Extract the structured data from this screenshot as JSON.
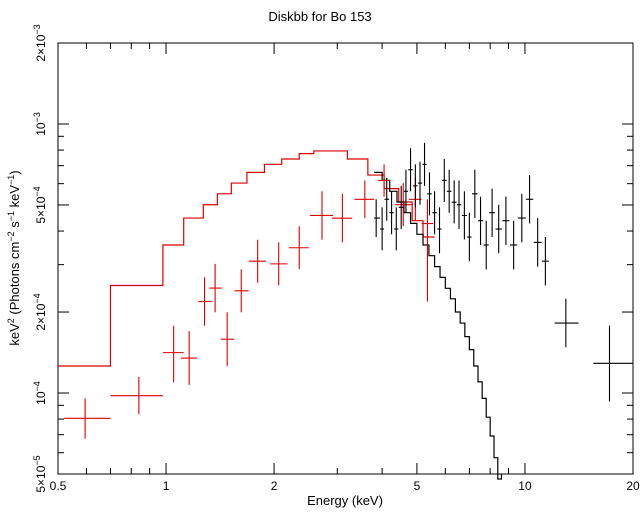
{
  "chart_data": {
    "type": "scatter",
    "title": "Diskbb for Bo 153",
    "xlabel": "Energy (keV)",
    "ylabel_parts": {
      "base": "keV",
      "sup1": "2",
      "mid1": " (Photons cm",
      "sup2": "−2",
      "mid2": " s",
      "sup3": "−1",
      "mid3": " keV",
      "sup4": "−1",
      "end": ")"
    },
    "xscale": "log",
    "yscale": "log",
    "xlim": [
      0.5,
      20
    ],
    "ylim": [
      5e-05,
      0.002
    ],
    "grid": false,
    "x_ticks": [
      {
        "value": 0.5,
        "label": "0.5"
      },
      {
        "value": 1,
        "label": "1"
      },
      {
        "value": 2,
        "label": "2"
      },
      {
        "value": 5,
        "label": "5"
      },
      {
        "value": 10,
        "label": "10"
      },
      {
        "value": 20,
        "label": "20"
      }
    ],
    "x_minor_ticks": [
      0.6,
      0.7,
      0.8,
      0.9,
      3,
      4,
      6,
      7,
      8,
      9
    ],
    "y_ticks": [
      {
        "value": 5e-05,
        "mantissa": "5",
        "times": "×",
        "base": "10",
        "exp": "−5"
      },
      {
        "value": 0.0001,
        "mantissa": "",
        "times": "",
        "base": "10",
        "exp": "−4"
      },
      {
        "value": 0.0002,
        "mantissa": "2",
        "times": "×",
        "base": "10",
        "exp": "−4"
      },
      {
        "value": 0.0005,
        "mantissa": "5",
        "times": "×",
        "base": "10",
        "exp": "−4"
      },
      {
        "value": 0.001,
        "mantissa": "",
        "times": "",
        "base": "10",
        "exp": "−3"
      },
      {
        "value": 0.002,
        "mantissa": "2",
        "times": "×",
        "base": "10",
        "exp": "−3"
      }
    ],
    "y_minor_ticks": [
      6e-05,
      7e-05,
      8e-05,
      9e-05,
      0.0003,
      0.0004,
      0.0006,
      0.0007,
      0.0008,
      0.0009
    ],
    "series": [
      {
        "color": "#dd0000",
        "points": [
          {
            "x": 0.595,
            "xlo": 0.52,
            "xhi": 0.7,
            "y": 8.05e-05,
            "ylo": 6.76e-05,
            "yhi": 9.55e-05
          },
          {
            "x": 0.84,
            "xlo": 0.7,
            "xhi": 0.98,
            "y": 9.77e-05,
            "ylo": 8.33e-05,
            "yhi": 0.0001148
          },
          {
            "x": 1.05,
            "xlo": 0.98,
            "xhi": 1.12,
            "y": 0.0001413,
            "ylo": 0.0001096,
            "yhi": 0.0001778
          },
          {
            "x": 1.16,
            "xlo": 1.1,
            "xhi": 1.22,
            "y": 0.0001349,
            "ylo": 0.0001072,
            "yhi": 0.0001698
          },
          {
            "x": 1.28,
            "xlo": 1.23,
            "xhi": 1.34,
            "y": 0.0002188,
            "ylo": 0.0001778,
            "yhi": 0.0002692
          },
          {
            "x": 1.37,
            "xlo": 1.32,
            "xhi": 1.43,
            "y": 0.0002455,
            "ylo": 0.0001995,
            "yhi": 0.000302
          },
          {
            "x": 1.48,
            "xlo": 1.42,
            "xhi": 1.55,
            "y": 0.0001585,
            "ylo": 0.0001259,
            "yhi": 0.0001995
          },
          {
            "x": 1.62,
            "xlo": 1.55,
            "xhi": 1.7,
            "y": 0.0002399,
            "ylo": 0.0001995,
            "yhi": 0.0002884
          },
          {
            "x": 1.8,
            "xlo": 1.7,
            "xhi": 1.9,
            "y": 0.000309,
            "ylo": 0.000257,
            "yhi": 0.0003715
          },
          {
            "x": 2.06,
            "xlo": 1.95,
            "xhi": 2.18,
            "y": 0.000302,
            "ylo": 0.0002512,
            "yhi": 0.0003631
          },
          {
            "x": 2.35,
            "xlo": 2.2,
            "xhi": 2.5,
            "y": 0.0003467,
            "ylo": 0.0002884,
            "yhi": 0.0004169
          },
          {
            "x": 2.72,
            "xlo": 2.52,
            "xhi": 2.92,
            "y": 0.0004571,
            "ylo": 0.0003715,
            "yhi": 0.0005623
          },
          {
            "x": 3.1,
            "xlo": 2.9,
            "xhi": 3.3,
            "y": 0.0004467,
            "ylo": 0.0003631,
            "yhi": 0.0005495
          },
          {
            "x": 3.58,
            "xlo": 3.35,
            "xhi": 3.8,
            "y": 0.0005248,
            "ylo": 0.0004467,
            "yhi": 0.0006166
          },
          {
            "x": 4.05,
            "xlo": 3.9,
            "xhi": 4.2,
            "y": 0.0006166,
            "ylo": 0.000537,
            "yhi": 0.0007079
          },
          {
            "x": 4.58,
            "xlo": 4.35,
            "xhi": 4.85,
            "y": 0.0005012,
            "ylo": 0.0004169,
            "yhi": 0.0006026
          },
          {
            "x": 4.95,
            "xlo": 4.75,
            "xhi": 5.15,
            "y": 0.0005248,
            "ylo": 0.0004365,
            "yhi": 0.000631
          },
          {
            "x": 5.35,
            "xlo": 5.15,
            "xhi": 5.55,
            "y": 0.0004266,
            "ylo": 0.0002188,
            "yhi": 0.0005248
          }
        ],
        "model_steps": [
          {
            "x0": 0.5,
            "x1": 0.7,
            "y": 0.000126
          },
          {
            "x0": 0.7,
            "x1": 0.98,
            "y": 0.000251
          },
          {
            "x0": 0.98,
            "x1": 1.12,
            "y": 0.000355
          },
          {
            "x0": 1.12,
            "x1": 1.27,
            "y": 0.000447
          },
          {
            "x0": 1.27,
            "x1": 1.39,
            "y": 0.000501
          },
          {
            "x0": 1.39,
            "x1": 1.52,
            "y": 0.00055
          },
          {
            "x0": 1.52,
            "x1": 1.68,
            "y": 0.000603
          },
          {
            "x0": 1.68,
            "x1": 1.88,
            "y": 0.000661
          },
          {
            "x0": 1.88,
            "x1": 2.1,
            "y": 0.000708
          },
          {
            "x0": 2.1,
            "x1": 2.35,
            "y": 0.000741
          },
          {
            "x0": 2.35,
            "x1": 2.58,
            "y": 0.000776
          },
          {
            "x0": 2.58,
            "x1": 3.2,
            "y": 0.000794
          },
          {
            "x0": 3.2,
            "x1": 3.65,
            "y": 0.000741
          },
          {
            "x0": 3.65,
            "x1": 4.05,
            "y": 0.000646
          },
          {
            "x0": 4.05,
            "x1": 4.45,
            "y": 0.000575
          },
          {
            "x0": 4.45,
            "x1": 4.85,
            "y": 0.000513
          },
          {
            "x0": 4.85,
            "x1": 5.2,
            "y": 0.000437
          },
          {
            "x0": 5.2,
            "x1": 5.6,
            "y": 0.00038
          }
        ]
      },
      {
        "color": "#000000",
        "points": [
          {
            "x": 3.85,
            "xlo": 3.8,
            "xhi": 3.95,
            "y": 0.000447,
            "ylo": 0.00038,
            "yhi": 0.000525
          },
          {
            "x": 4.0,
            "xlo": 3.95,
            "xhi": 4.05,
            "y": 0.000407,
            "ylo": 0.000339,
            "yhi": 0.00049
          },
          {
            "x": 4.12,
            "xlo": 4.06,
            "xhi": 4.18,
            "y": 0.000525,
            "ylo": 0.000437,
            "yhi": 0.000631
          },
          {
            "x": 4.25,
            "xlo": 4.19,
            "xhi": 4.31,
            "y": 0.000468,
            "ylo": 0.000389,
            "yhi": 0.000562
          },
          {
            "x": 4.38,
            "xlo": 4.32,
            "xhi": 4.44,
            "y": 0.000407,
            "ylo": 0.000339,
            "yhi": 0.00049
          },
          {
            "x": 4.52,
            "xlo": 4.45,
            "xhi": 4.59,
            "y": 0.00049,
            "ylo": 0.000407,
            "yhi": 0.000589
          },
          {
            "x": 4.66,
            "xlo": 4.6,
            "xhi": 4.72,
            "y": 0.000562,
            "ylo": 0.000468,
            "yhi": 0.000676
          },
          {
            "x": 4.8,
            "xlo": 4.73,
            "xhi": 4.87,
            "y": 0.000676,
            "ylo": 0.000562,
            "yhi": 0.000813
          },
          {
            "x": 4.95,
            "xlo": 4.88,
            "xhi": 5.02,
            "y": 0.000589,
            "ylo": 0.00049,
            "yhi": 0.000708
          },
          {
            "x": 5.1,
            "xlo": 5.03,
            "xhi": 5.17,
            "y": 0.000603,
            "ylo": 0.000501,
            "yhi": 0.000724
          },
          {
            "x": 5.25,
            "xlo": 5.18,
            "xhi": 5.32,
            "y": 0.000708,
            "ylo": 0.000589,
            "yhi": 0.000851
          },
          {
            "x": 5.42,
            "xlo": 5.34,
            "xhi": 5.5,
            "y": 0.00055,
            "ylo": 0.000457,
            "yhi": 0.000661
          },
          {
            "x": 5.6,
            "xlo": 5.52,
            "xhi": 5.68,
            "y": 0.000468,
            "ylo": 0.000389,
            "yhi": 0.000562
          },
          {
            "x": 5.78,
            "xlo": 5.7,
            "xhi": 5.86,
            "y": 0.000407,
            "ylo": 0.000331,
            "yhi": 0.00049
          },
          {
            "x": 5.96,
            "xlo": 5.88,
            "xhi": 6.05,
            "y": 0.000617,
            "ylo": 0.000513,
            "yhi": 0.000741
          },
          {
            "x": 6.15,
            "xlo": 6.06,
            "xhi": 6.24,
            "y": 0.000562,
            "ylo": 0.000468,
            "yhi": 0.000676
          },
          {
            "x": 6.35,
            "xlo": 6.25,
            "xhi": 6.45,
            "y": 0.000512,
            "ylo": 0.000427,
            "yhi": 0.000617
          },
          {
            "x": 6.55,
            "xlo": 6.46,
            "xhi": 6.65,
            "y": 0.000501,
            "ylo": 0.000407,
            "yhi": 0.000617
          },
          {
            "x": 6.78,
            "xlo": 6.67,
            "xhi": 6.89,
            "y": 0.000457,
            "ylo": 0.000372,
            "yhi": 0.000562
          },
          {
            "x": 7.0,
            "xlo": 6.9,
            "xhi": 7.1,
            "y": 0.00038,
            "ylo": 0.000309,
            "yhi": 0.000468
          },
          {
            "x": 7.25,
            "xlo": 7.12,
            "xhi": 7.38,
            "y": 0.00055,
            "ylo": 0.000447,
            "yhi": 0.000676
          },
          {
            "x": 7.52,
            "xlo": 7.4,
            "xhi": 7.65,
            "y": 0.000437,
            "ylo": 0.000355,
            "yhi": 0.000537
          },
          {
            "x": 7.8,
            "xlo": 7.67,
            "xhi": 7.93,
            "y": 0.000355,
            "ylo": 0.000288,
            "yhi": 0.000437
          },
          {
            "x": 8.1,
            "xlo": 7.95,
            "xhi": 8.25,
            "y": 0.000468,
            "ylo": 0.00038,
            "yhi": 0.000575
          },
          {
            "x": 8.45,
            "xlo": 8.28,
            "xhi": 8.62,
            "y": 0.000407,
            "ylo": 0.000331,
            "yhi": 0.000501
          },
          {
            "x": 8.85,
            "xlo": 8.65,
            "xhi": 9.05,
            "y": 0.000437,
            "ylo": 0.000355,
            "yhi": 0.000537
          },
          {
            "x": 9.3,
            "xlo": 9.08,
            "xhi": 9.52,
            "y": 0.000355,
            "ylo": 0.000288,
            "yhi": 0.000437
          },
          {
            "x": 9.8,
            "xlo": 9.55,
            "xhi": 10.05,
            "y": 0.000447,
            "ylo": 0.000363,
            "yhi": 0.00055
          },
          {
            "x": 10.3,
            "xlo": 10.07,
            "xhi": 10.55,
            "y": 0.000525,
            "ylo": 0.000427,
            "yhi": 0.000646
          },
          {
            "x": 10.85,
            "xlo": 10.58,
            "xhi": 11.12,
            "y": 0.000363,
            "ylo": 0.000295,
            "yhi": 0.000447
          },
          {
            "x": 11.4,
            "xlo": 11.15,
            "xhi": 11.65,
            "y": 0.000309,
            "ylo": 0.000251,
            "yhi": 0.00038
          },
          {
            "x": 13.0,
            "xlo": 12.1,
            "xhi": 14.1,
            "y": 0.000182,
            "ylo": 0.000148,
            "yhi": 0.000224
          },
          {
            "x": 17.2,
            "xlo": 15.5,
            "xhi": 20.0,
            "y": 0.000129,
            "ylo": 9.3e-05,
            "yhi": 0.000178
          }
        ],
        "model_steps": [
          {
            "x0": 3.8,
            "x1": 4.0,
            "y": 0.000661
          },
          {
            "x0": 4.0,
            "x1": 4.2,
            "y": 0.000617
          },
          {
            "x0": 4.2,
            "x1": 4.4,
            "y": 0.000562
          },
          {
            "x0": 4.4,
            "x1": 4.6,
            "y": 0.000513
          },
          {
            "x0": 4.6,
            "x1": 4.8,
            "y": 0.000468
          },
          {
            "x0": 4.8,
            "x1": 5.0,
            "y": 0.000427
          },
          {
            "x0": 5.0,
            "x1": 5.2,
            "y": 0.000389
          },
          {
            "x0": 5.2,
            "x1": 5.4,
            "y": 0.000355
          },
          {
            "x0": 5.4,
            "x1": 5.6,
            "y": 0.000324
          },
          {
            "x0": 5.6,
            "x1": 5.8,
            "y": 0.000295
          },
          {
            "x0": 5.8,
            "x1": 6.0,
            "y": 0.000269
          },
          {
            "x0": 6.0,
            "x1": 6.2,
            "y": 0.000245
          },
          {
            "x0": 6.2,
            "x1": 6.4,
            "y": 0.000224
          },
          {
            "x0": 6.4,
            "x1": 6.6,
            "y": 0.0002
          },
          {
            "x0": 6.6,
            "x1": 6.8,
            "y": 0.000182
          },
          {
            "x0": 6.8,
            "x1": 7.0,
            "y": 0.000162
          },
          {
            "x0": 7.0,
            "x1": 7.2,
            "y": 0.000145
          },
          {
            "x0": 7.2,
            "x1": 7.4,
            "y": 0.000126
          },
          {
            "x0": 7.4,
            "x1": 7.6,
            "y": 0.00011
          },
          {
            "x0": 7.6,
            "x1": 7.8,
            "y": 9.55e-05
          },
          {
            "x0": 7.8,
            "x1": 8.0,
            "y": 8.13e-05
          },
          {
            "x0": 8.0,
            "x1": 8.2,
            "y": 6.92e-05
          },
          {
            "x0": 8.2,
            "x1": 8.4,
            "y": 5.75e-05
          },
          {
            "x0": 8.4,
            "x1": 8.6,
            "y": 4.79e-05
          }
        ]
      }
    ]
  }
}
